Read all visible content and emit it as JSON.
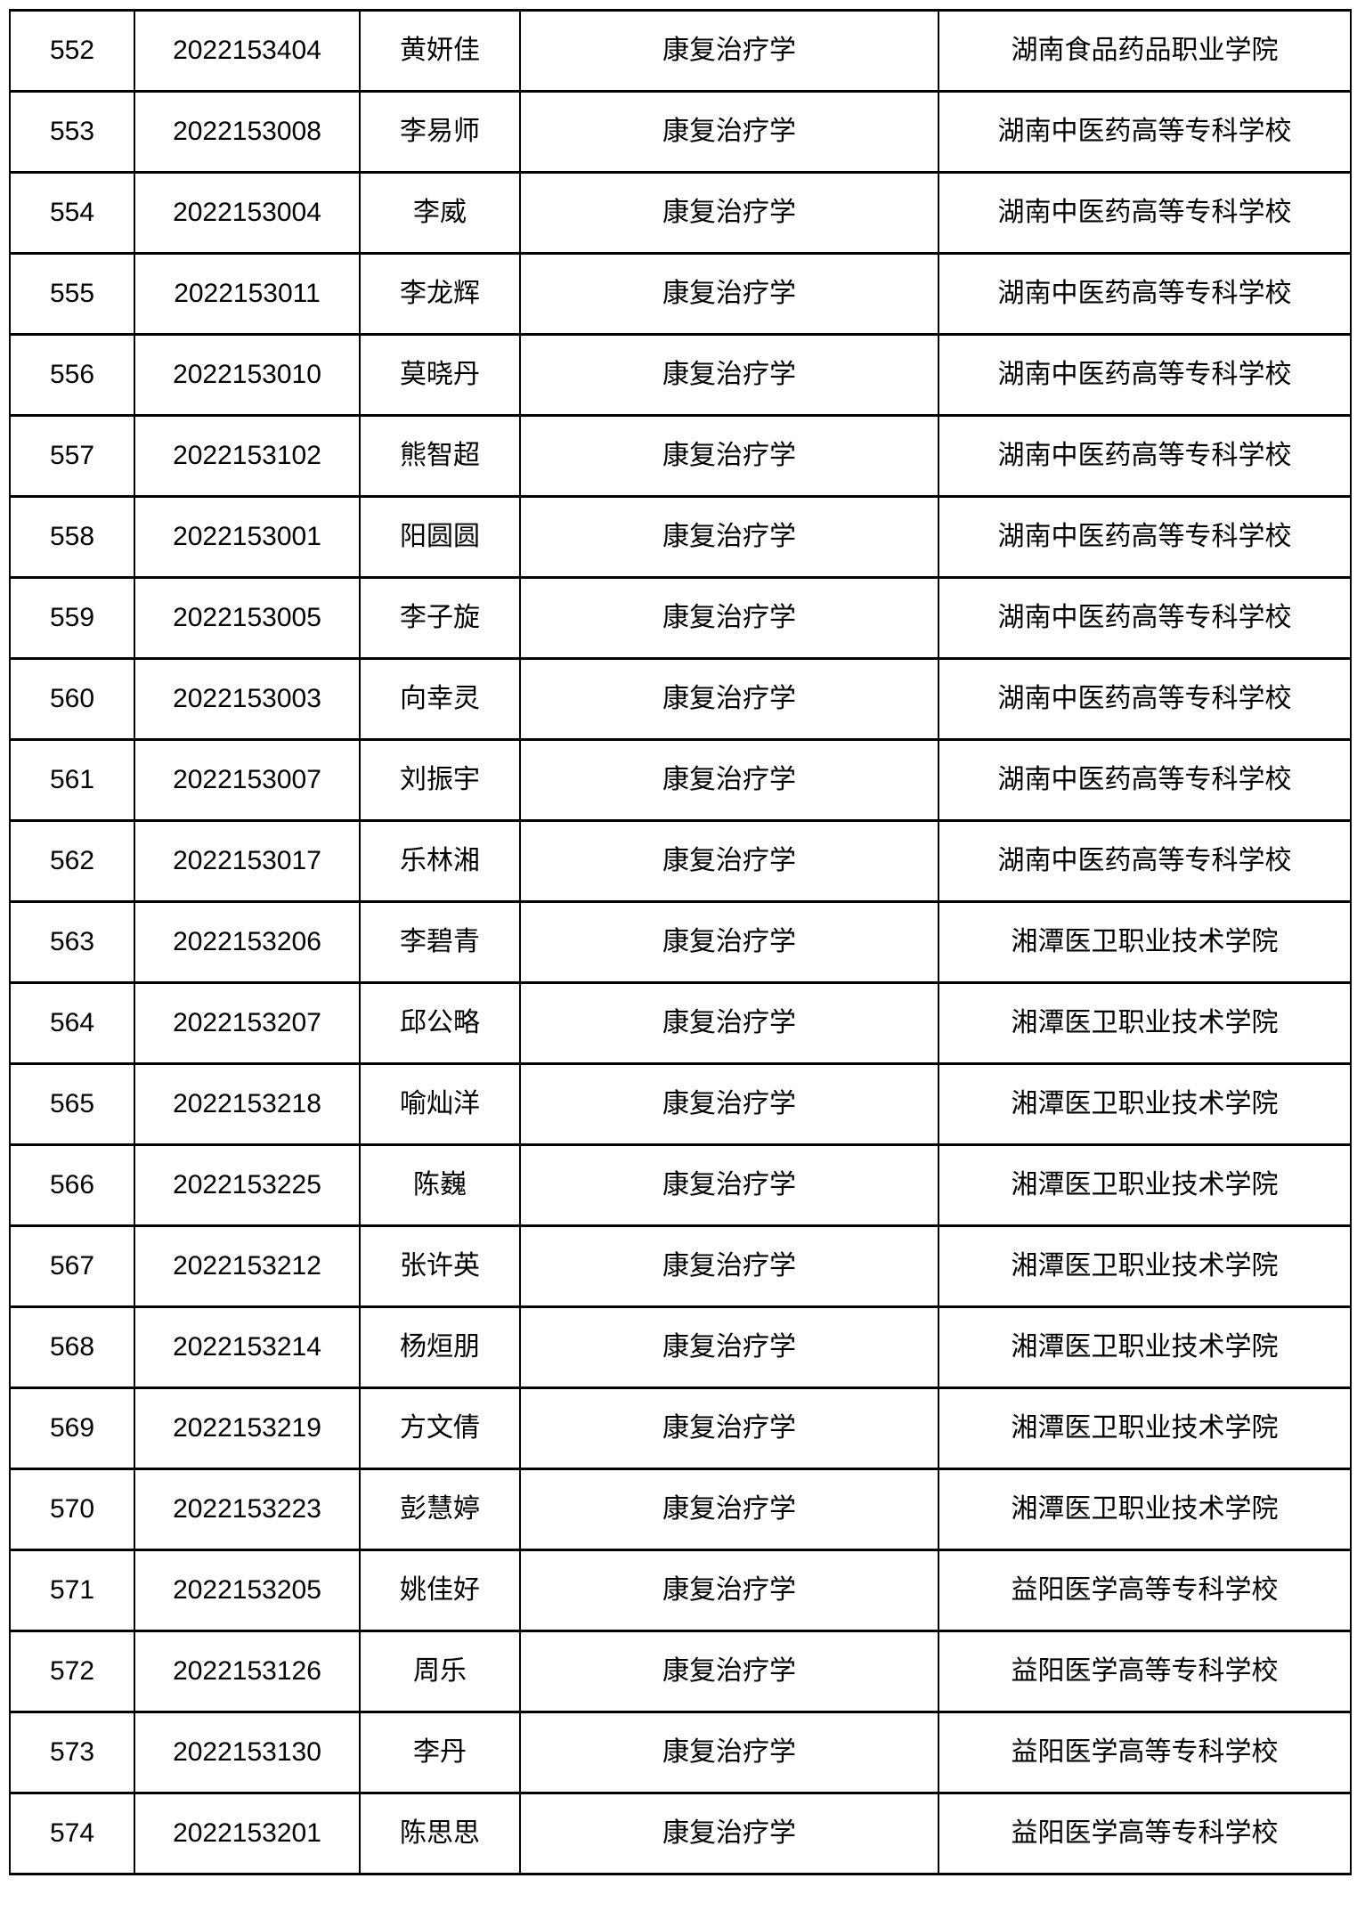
{
  "colors": {
    "background": "#ffffff",
    "border": "#000000",
    "text": "#000000"
  },
  "table": {
    "rows": [
      {
        "no": "552",
        "candidate_id": "2022153404",
        "name": "黄妍佳",
        "major": "康复治疗学",
        "school": "湖南食品药品职业学院"
      },
      {
        "no": "553",
        "candidate_id": "2022153008",
        "name": "李易师",
        "major": "康复治疗学",
        "school": "湖南中医药高等专科学校"
      },
      {
        "no": "554",
        "candidate_id": "2022153004",
        "name": "李威",
        "major": "康复治疗学",
        "school": "湖南中医药高等专科学校"
      },
      {
        "no": "555",
        "candidate_id": "2022153011",
        "name": "李龙辉",
        "major": "康复治疗学",
        "school": "湖南中医药高等专科学校"
      },
      {
        "no": "556",
        "candidate_id": "2022153010",
        "name": "莫晓丹",
        "major": "康复治疗学",
        "school": "湖南中医药高等专科学校"
      },
      {
        "no": "557",
        "candidate_id": "2022153102",
        "name": "熊智超",
        "major": "康复治疗学",
        "school": "湖南中医药高等专科学校"
      },
      {
        "no": "558",
        "candidate_id": "2022153001",
        "name": "阳圆圆",
        "major": "康复治疗学",
        "school": "湖南中医药高等专科学校"
      },
      {
        "no": "559",
        "candidate_id": "2022153005",
        "name": "李子旋",
        "major": "康复治疗学",
        "school": "湖南中医药高等专科学校"
      },
      {
        "no": "560",
        "candidate_id": "2022153003",
        "name": "向幸灵",
        "major": "康复治疗学",
        "school": "湖南中医药高等专科学校"
      },
      {
        "no": "561",
        "candidate_id": "2022153007",
        "name": "刘振宇",
        "major": "康复治疗学",
        "school": "湖南中医药高等专科学校"
      },
      {
        "no": "562",
        "candidate_id": "2022153017",
        "name": "乐林湘",
        "major": "康复治疗学",
        "school": "湖南中医药高等专科学校"
      },
      {
        "no": "563",
        "candidate_id": "2022153206",
        "name": "李碧青",
        "major": "康复治疗学",
        "school": "湘潭医卫职业技术学院"
      },
      {
        "no": "564",
        "candidate_id": "2022153207",
        "name": "邱公略",
        "major": "康复治疗学",
        "school": "湘潭医卫职业技术学院"
      },
      {
        "no": "565",
        "candidate_id": "2022153218",
        "name": "喻灿洋",
        "major": "康复治疗学",
        "school": "湘潭医卫职业技术学院"
      },
      {
        "no": "566",
        "candidate_id": "2022153225",
        "name": "陈巍",
        "major": "康复治疗学",
        "school": "湘潭医卫职业技术学院"
      },
      {
        "no": "567",
        "candidate_id": "2022153212",
        "name": "张许英",
        "major": "康复治疗学",
        "school": "湘潭医卫职业技术学院"
      },
      {
        "no": "568",
        "candidate_id": "2022153214",
        "name": "杨烜朋",
        "major": "康复治疗学",
        "school": "湘潭医卫职业技术学院"
      },
      {
        "no": "569",
        "candidate_id": "2022153219",
        "name": "方文倩",
        "major": "康复治疗学",
        "school": "湘潭医卫职业技术学院"
      },
      {
        "no": "570",
        "candidate_id": "2022153223",
        "name": "彭慧婷",
        "major": "康复治疗学",
        "school": "湘潭医卫职业技术学院"
      },
      {
        "no": "571",
        "candidate_id": "2022153205",
        "name": "姚佳好",
        "major": "康复治疗学",
        "school": "益阳医学高等专科学校"
      },
      {
        "no": "572",
        "candidate_id": "2022153126",
        "name": "周乐",
        "major": "康复治疗学",
        "school": "益阳医学高等专科学校"
      },
      {
        "no": "573",
        "candidate_id": "2022153130",
        "name": "李丹",
        "major": "康复治疗学",
        "school": "益阳医学高等专科学校"
      },
      {
        "no": "574",
        "candidate_id": "2022153201",
        "name": "陈思思",
        "major": "康复治疗学",
        "school": "益阳医学高等专科学校"
      }
    ]
  }
}
